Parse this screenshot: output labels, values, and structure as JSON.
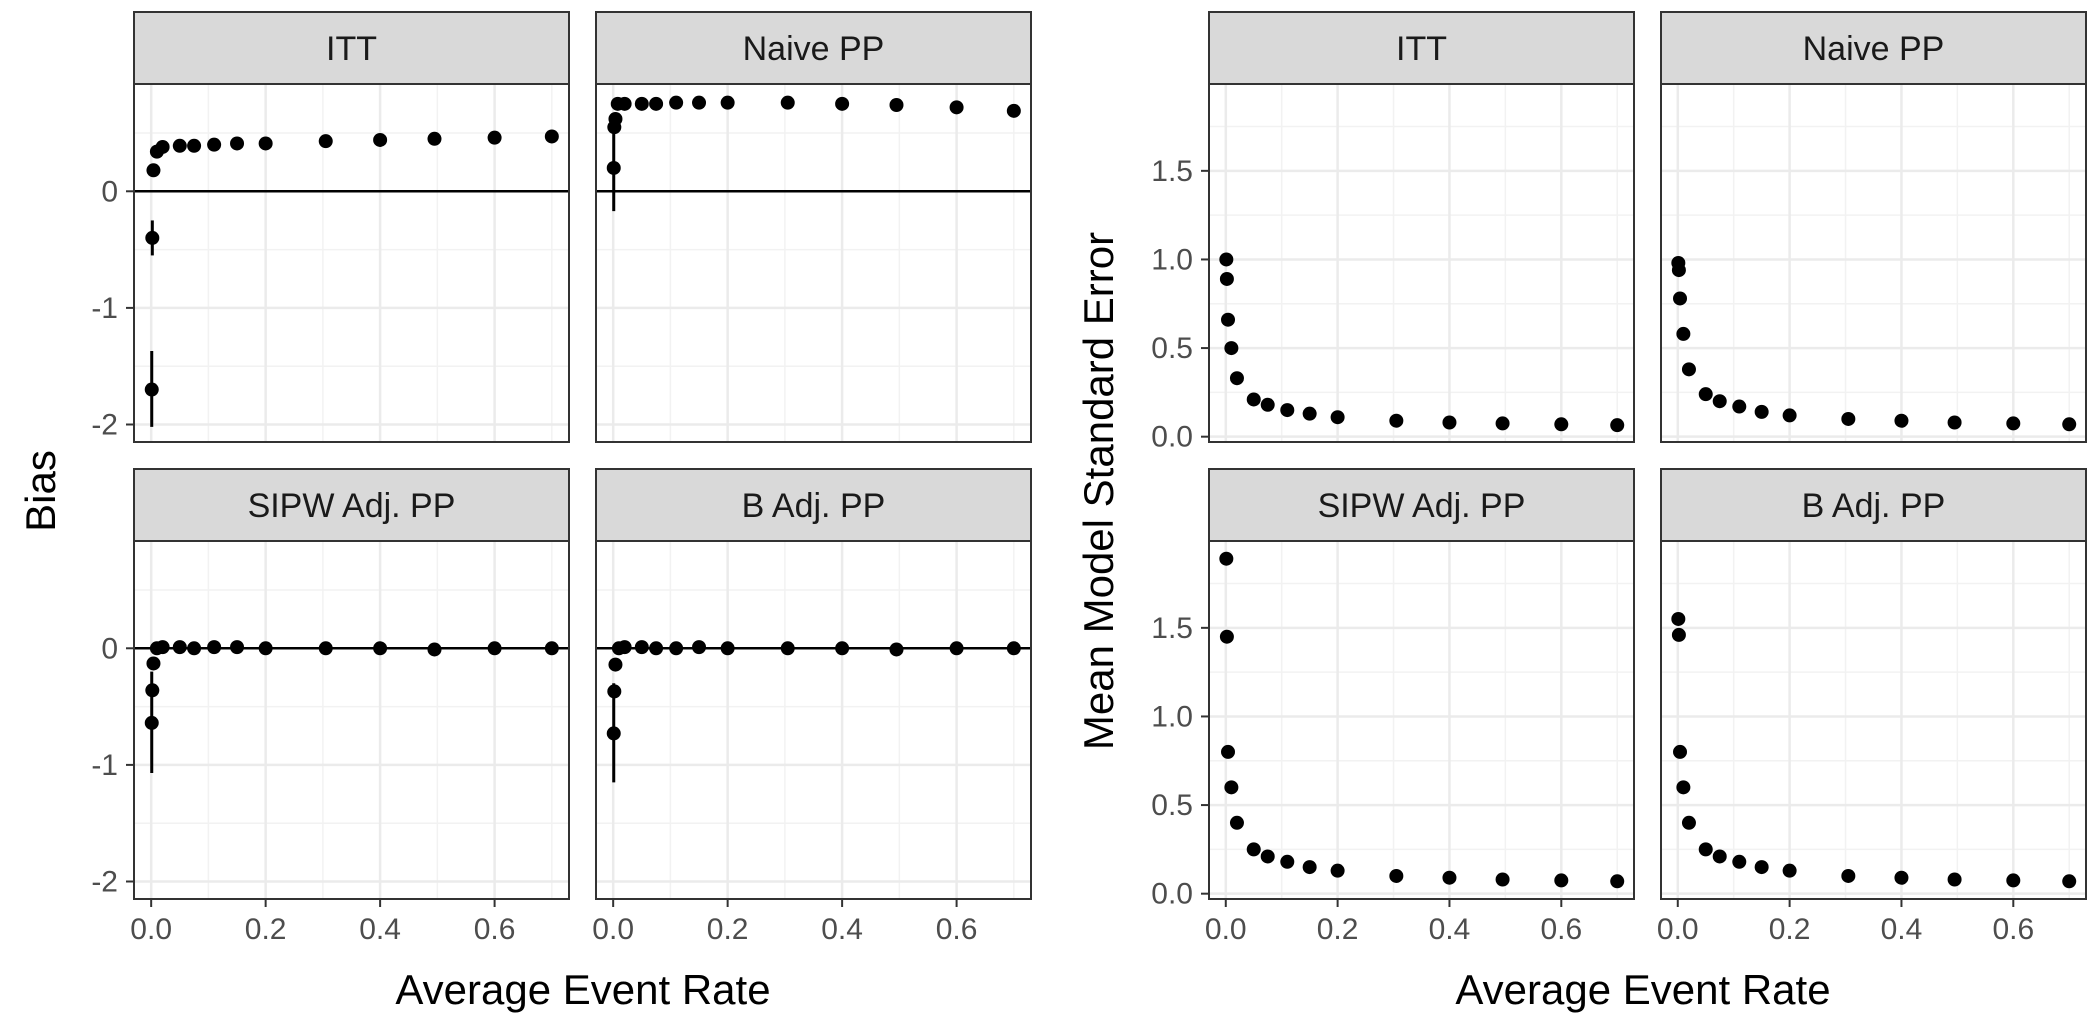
{
  "chart_data": [
    {
      "type": "scatter",
      "ylabel": "Bias",
      "xlabel": "Average Event Rate",
      "xlim": [
        -0.03,
        0.73
      ],
      "ylim": [
        -2.15,
        0.92
      ],
      "yticks": [
        0,
        -1,
        -2
      ],
      "xticks": [
        0.0,
        0.2,
        0.4,
        0.6
      ],
      "grid": true,
      "reference_line_y": 0,
      "panels": [
        {
          "title": "ITT",
          "points": [
            {
              "x": 0.001,
              "y": -1.7,
              "lo": -2.02,
              "hi": -1.37
            },
            {
              "x": 0.002,
              "y": -0.4,
              "lo": -0.55,
              "hi": -0.25
            },
            {
              "x": 0.004,
              "y": 0.18
            },
            {
              "x": 0.01,
              "y": 0.34
            },
            {
              "x": 0.02,
              "y": 0.38
            },
            {
              "x": 0.05,
              "y": 0.39
            },
            {
              "x": 0.075,
              "y": 0.39
            },
            {
              "x": 0.11,
              "y": 0.4
            },
            {
              "x": 0.15,
              "y": 0.41
            },
            {
              "x": 0.2,
              "y": 0.41
            },
            {
              "x": 0.305,
              "y": 0.43
            },
            {
              "x": 0.4,
              "y": 0.44
            },
            {
              "x": 0.495,
              "y": 0.45
            },
            {
              "x": 0.6,
              "y": 0.46
            },
            {
              "x": 0.7,
              "y": 0.47
            }
          ]
        },
        {
          "title": "Naive PP",
          "points": [
            {
              "x": 0.001,
              "y": 0.2,
              "lo": -0.17,
              "hi": 0.57
            },
            {
              "x": 0.002,
              "y": 0.55
            },
            {
              "x": 0.004,
              "y": 0.62
            },
            {
              "x": 0.008,
              "y": 0.75
            },
            {
              "x": 0.02,
              "y": 0.75
            },
            {
              "x": 0.05,
              "y": 0.75
            },
            {
              "x": 0.075,
              "y": 0.75
            },
            {
              "x": 0.11,
              "y": 0.76
            },
            {
              "x": 0.15,
              "y": 0.76
            },
            {
              "x": 0.2,
              "y": 0.76
            },
            {
              "x": 0.305,
              "y": 0.76
            },
            {
              "x": 0.4,
              "y": 0.75
            },
            {
              "x": 0.495,
              "y": 0.74
            },
            {
              "x": 0.6,
              "y": 0.72
            },
            {
              "x": 0.7,
              "y": 0.69
            }
          ]
        },
        {
          "title": "SIPW Adj. PP",
          "points": [
            {
              "x": 0.001,
              "y": -0.64,
              "lo": -1.07,
              "hi": -0.2
            },
            {
              "x": 0.002,
              "y": -0.36
            },
            {
              "x": 0.004,
              "y": -0.13
            },
            {
              "x": 0.01,
              "y": 0.0
            },
            {
              "x": 0.02,
              "y": 0.01
            },
            {
              "x": 0.05,
              "y": 0.01
            },
            {
              "x": 0.075,
              "y": 0.0
            },
            {
              "x": 0.11,
              "y": 0.01
            },
            {
              "x": 0.15,
              "y": 0.01
            },
            {
              "x": 0.2,
              "y": 0.0
            },
            {
              "x": 0.305,
              "y": 0.0
            },
            {
              "x": 0.4,
              "y": 0.0
            },
            {
              "x": 0.495,
              "y": -0.01
            },
            {
              "x": 0.6,
              "y": 0.0
            },
            {
              "x": 0.7,
              "y": 0.0
            }
          ]
        },
        {
          "title": "B Adj. PP",
          "points": [
            {
              "x": 0.001,
              "y": -0.73,
              "lo": -1.15,
              "hi": -0.3
            },
            {
              "x": 0.002,
              "y": -0.37
            },
            {
              "x": 0.004,
              "y": -0.14
            },
            {
              "x": 0.01,
              "y": 0.0
            },
            {
              "x": 0.02,
              "y": 0.01
            },
            {
              "x": 0.05,
              "y": 0.01
            },
            {
              "x": 0.075,
              "y": 0.0
            },
            {
              "x": 0.11,
              "y": 0.0
            },
            {
              "x": 0.15,
              "y": 0.01
            },
            {
              "x": 0.2,
              "y": 0.0
            },
            {
              "x": 0.305,
              "y": 0.0
            },
            {
              "x": 0.4,
              "y": 0.0
            },
            {
              "x": 0.495,
              "y": -0.01
            },
            {
              "x": 0.6,
              "y": 0.0
            },
            {
              "x": 0.7,
              "y": 0.0
            }
          ]
        }
      ]
    },
    {
      "type": "scatter",
      "ylabel": "Mean Model Standard Error",
      "xlabel": "Average Event Rate",
      "xlim": [
        -0.03,
        0.73
      ],
      "ylim": [
        -0.03,
        1.99
      ],
      "yticks": [
        0.0,
        0.5,
        1.0,
        1.5
      ],
      "xticks": [
        0.0,
        0.2,
        0.4,
        0.6
      ],
      "grid": true,
      "panels": [
        {
          "title": "ITT",
          "points": [
            {
              "x": 0.001,
              "y": 1.0
            },
            {
              "x": 0.002,
              "y": 0.89
            },
            {
              "x": 0.004,
              "y": 0.66
            },
            {
              "x": 0.01,
              "y": 0.5
            },
            {
              "x": 0.02,
              "y": 0.33
            },
            {
              "x": 0.05,
              "y": 0.21
            },
            {
              "x": 0.075,
              "y": 0.18
            },
            {
              "x": 0.11,
              "y": 0.15
            },
            {
              "x": 0.15,
              "y": 0.13
            },
            {
              "x": 0.2,
              "y": 0.11
            },
            {
              "x": 0.305,
              "y": 0.09
            },
            {
              "x": 0.4,
              "y": 0.08
            },
            {
              "x": 0.495,
              "y": 0.075
            },
            {
              "x": 0.6,
              "y": 0.07
            },
            {
              "x": 0.7,
              "y": 0.065
            }
          ]
        },
        {
          "title": "Naive PP",
          "points": [
            {
              "x": 0.001,
              "y": 0.98
            },
            {
              "x": 0.002,
              "y": 0.94
            },
            {
              "x": 0.004,
              "y": 0.78
            },
            {
              "x": 0.01,
              "y": 0.58
            },
            {
              "x": 0.02,
              "y": 0.38
            },
            {
              "x": 0.05,
              "y": 0.24
            },
            {
              "x": 0.075,
              "y": 0.2
            },
            {
              "x": 0.11,
              "y": 0.17
            },
            {
              "x": 0.15,
              "y": 0.14
            },
            {
              "x": 0.2,
              "y": 0.12
            },
            {
              "x": 0.305,
              "y": 0.1
            },
            {
              "x": 0.4,
              "y": 0.09
            },
            {
              "x": 0.495,
              "y": 0.08
            },
            {
              "x": 0.6,
              "y": 0.075
            },
            {
              "x": 0.7,
              "y": 0.07
            }
          ]
        },
        {
          "title": "SIPW Adj. PP",
          "points": [
            {
              "x": 0.001,
              "y": 1.89
            },
            {
              "x": 0.002,
              "y": 1.45
            },
            {
              "x": 0.004,
              "y": 0.8
            },
            {
              "x": 0.01,
              "y": 0.6
            },
            {
              "x": 0.02,
              "y": 0.4
            },
            {
              "x": 0.05,
              "y": 0.25
            },
            {
              "x": 0.075,
              "y": 0.21
            },
            {
              "x": 0.11,
              "y": 0.18
            },
            {
              "x": 0.15,
              "y": 0.15
            },
            {
              "x": 0.2,
              "y": 0.13
            },
            {
              "x": 0.305,
              "y": 0.1
            },
            {
              "x": 0.4,
              "y": 0.09
            },
            {
              "x": 0.495,
              "y": 0.08
            },
            {
              "x": 0.6,
              "y": 0.075
            },
            {
              "x": 0.7,
              "y": 0.07
            }
          ]
        },
        {
          "title": "B Adj. PP",
          "points": [
            {
              "x": 0.001,
              "y": 1.55
            },
            {
              "x": 0.002,
              "y": 1.46
            },
            {
              "x": 0.004,
              "y": 0.8
            },
            {
              "x": 0.01,
              "y": 0.6
            },
            {
              "x": 0.02,
              "y": 0.4
            },
            {
              "x": 0.05,
              "y": 0.25
            },
            {
              "x": 0.075,
              "y": 0.21
            },
            {
              "x": 0.11,
              "y": 0.18
            },
            {
              "x": 0.15,
              "y": 0.15
            },
            {
              "x": 0.2,
              "y": 0.13
            },
            {
              "x": 0.305,
              "y": 0.1
            },
            {
              "x": 0.4,
              "y": 0.09
            },
            {
              "x": 0.495,
              "y": 0.08
            },
            {
              "x": 0.6,
              "y": 0.075
            },
            {
              "x": 0.7,
              "y": 0.07
            }
          ]
        }
      ]
    }
  ]
}
